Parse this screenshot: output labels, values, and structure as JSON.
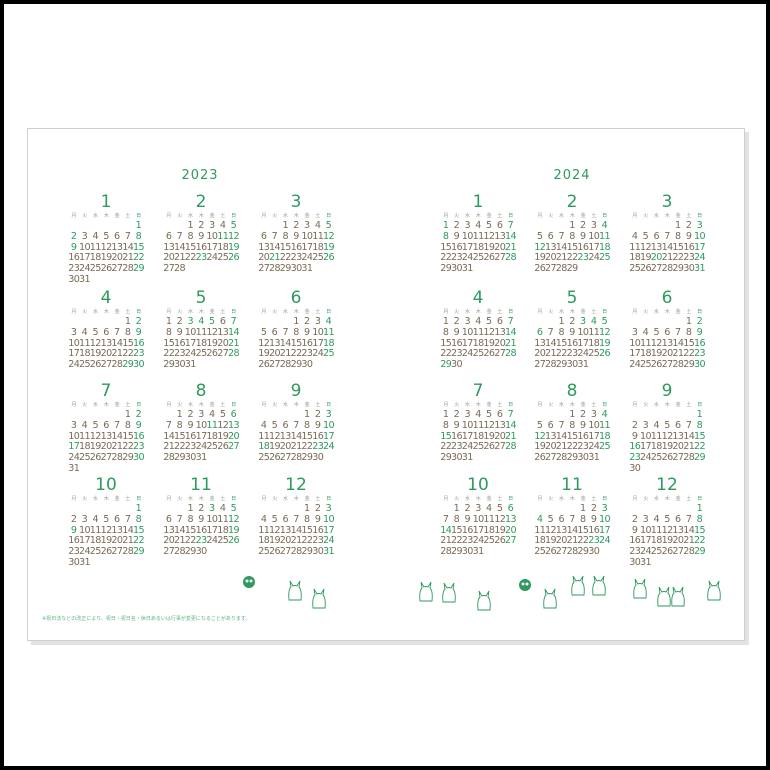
{
  "weekday_headers": [
    "月",
    "火",
    "水",
    "木",
    "金",
    "土",
    "日"
  ],
  "accent_color": "#2e9a5e",
  "footnote": "※祝日法などの改正により、祝日・祝日名・休日あるいは行事が変更になることがあります。",
  "years": [
    {
      "year": "2023",
      "months": [
        {
          "label": "1",
          "offset": 6,
          "days": 31,
          "green": [
            1,
            2,
            8,
            9,
            15,
            22,
            29
          ]
        },
        {
          "label": "2",
          "offset": 2,
          "days": 28,
          "green": [
            5,
            11,
            12,
            19,
            23,
            26
          ]
        },
        {
          "label": "3",
          "offset": 2,
          "days": 31,
          "green": [
            5,
            12,
            19,
            21,
            26
          ]
        },
        {
          "label": "4",
          "offset": 5,
          "days": 30,
          "green": [
            2,
            9,
            16,
            23,
            29,
            30
          ]
        },
        {
          "label": "5",
          "offset": 0,
          "days": 31,
          "green": [
            3,
            4,
            5,
            7,
            14,
            21,
            28
          ]
        },
        {
          "label": "6",
          "offset": 3,
          "days": 30,
          "green": [
            4,
            11,
            18,
            25
          ]
        },
        {
          "label": "7",
          "offset": 5,
          "days": 31,
          "green": [
            2,
            9,
            16,
            17,
            23,
            30
          ]
        },
        {
          "label": "8",
          "offset": 1,
          "days": 31,
          "green": [
            6,
            11,
            13,
            20,
            27
          ]
        },
        {
          "label": "9",
          "offset": 4,
          "days": 30,
          "green": [
            3,
            10,
            17,
            18,
            23,
            24
          ]
        },
        {
          "label": "10",
          "offset": 6,
          "days": 31,
          "green": [
            1,
            8,
            9,
            15,
            22,
            29
          ]
        },
        {
          "label": "11",
          "offset": 2,
          "days": 30,
          "green": [
            3,
            5,
            12,
            19,
            23,
            26
          ]
        },
        {
          "label": "12",
          "offset": 4,
          "days": 31,
          "green": [
            3,
            10,
            17,
            24,
            31
          ]
        }
      ]
    },
    {
      "year": "2024",
      "months": [
        {
          "label": "1",
          "offset": 0,
          "days": 31,
          "green": [
            1,
            7,
            8,
            14,
            21,
            28
          ]
        },
        {
          "label": "2",
          "offset": 3,
          "days": 29,
          "green": [
            4,
            11,
            12,
            18,
            23,
            25
          ]
        },
        {
          "label": "3",
          "offset": 4,
          "days": 31,
          "green": [
            3,
            10,
            17,
            20,
            24,
            31
          ]
        },
        {
          "label": "4",
          "offset": 0,
          "days": 30,
          "green": [
            7,
            14,
            21,
            28,
            29
          ]
        },
        {
          "label": "5",
          "offset": 2,
          "days": 31,
          "green": [
            3,
            4,
            5,
            6,
            12,
            19,
            26
          ]
        },
        {
          "label": "6",
          "offset": 5,
          "days": 30,
          "green": [
            2,
            9,
            16,
            23,
            30
          ]
        },
        {
          "label": "7",
          "offset": 0,
          "days": 31,
          "green": [
            7,
            14,
            15,
            21,
            28
          ]
        },
        {
          "label": "8",
          "offset": 3,
          "days": 31,
          "green": [
            4,
            11,
            12,
            18,
            25
          ]
        },
        {
          "label": "9",
          "offset": 6,
          "days": 30,
          "green": [
            1,
            8,
            15,
            16,
            22,
            23,
            29
          ]
        },
        {
          "label": "10",
          "offset": 1,
          "days": 31,
          "green": [
            6,
            13,
            14,
            20,
            27
          ]
        },
        {
          "label": "11",
          "offset": 4,
          "days": 30,
          "green": [
            3,
            4,
            10,
            17,
            23,
            24
          ]
        },
        {
          "label": "12",
          "offset": 6,
          "days": 31,
          "green": [
            1,
            8,
            15,
            22,
            29
          ]
        }
      ]
    }
  ]
}
